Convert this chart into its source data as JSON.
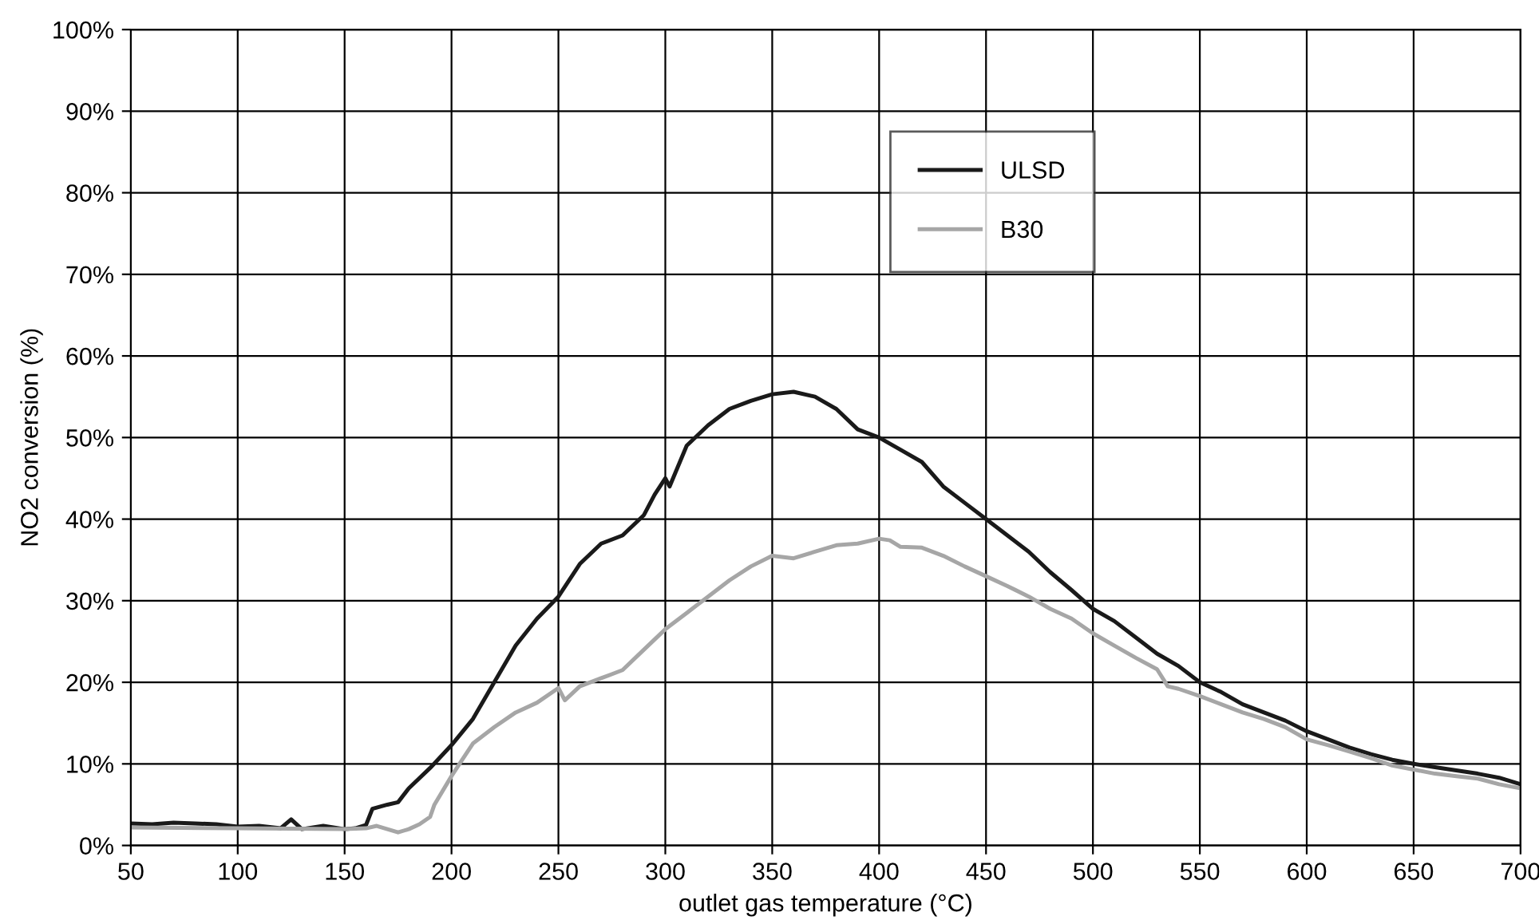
{
  "chart_data": {
    "type": "line",
    "xlabel": "outlet gas temperature (°C)",
    "ylabel": "NO2 conversion (%)",
    "xlim": [
      50,
      700
    ],
    "xticks": [
      50,
      100,
      150,
      200,
      250,
      300,
      350,
      400,
      450,
      500,
      550,
      600,
      650,
      700
    ],
    "ylim": [
      0,
      100
    ],
    "yticks": [
      {
        "value": 0,
        "label": "0%"
      },
      {
        "value": 10,
        "label": "10%"
      },
      {
        "value": 20,
        "label": "20%"
      },
      {
        "value": 30,
        "label": "30%"
      },
      {
        "value": 40,
        "label": "40%"
      },
      {
        "value": 50,
        "label": "50%"
      },
      {
        "value": 60,
        "label": "60%"
      },
      {
        "value": 70,
        "label": "70%"
      },
      {
        "value": 80,
        "label": "80%"
      },
      {
        "value": 90,
        "label": "90%"
      },
      {
        "value": 100,
        "label": "100%"
      }
    ],
    "grid": true,
    "legend": "top",
    "marker": "none",
    "series": [
      {
        "name": "ULSD",
        "color": "#1a1a1a",
        "line_style": "solid",
        "x": [
          50,
          60,
          70,
          80,
          90,
          100,
          110,
          120,
          125,
          130,
          140,
          150,
          155,
          160,
          163,
          170,
          175,
          180,
          190,
          200,
          210,
          220,
          230,
          240,
          250,
          260,
          270,
          280,
          290,
          295,
          300,
          302,
          310,
          320,
          330,
          340,
          350,
          360,
          370,
          380,
          390,
          400,
          410,
          420,
          430,
          440,
          450,
          460,
          470,
          480,
          490,
          500,
          510,
          520,
          530,
          540,
          550,
          560,
          570,
          580,
          590,
          600,
          610,
          620,
          630,
          640,
          650,
          660,
          670,
          680,
          690,
          700
        ],
        "values": [
          2.7,
          2.6,
          2.8,
          2.7,
          2.6,
          2.3,
          2.4,
          2.1,
          3.2,
          2.0,
          2.4,
          2.0,
          2.1,
          2.5,
          4.5,
          5.0,
          5.3,
          7.0,
          9.5,
          12.3,
          15.5,
          20,
          24.5,
          27.8,
          30.5,
          34.5,
          37,
          38,
          40.5,
          43,
          45,
          44,
          49,
          51.5,
          53.5,
          54.5,
          55.3,
          55.6,
          55,
          53.5,
          51,
          50,
          48.5,
          47,
          44,
          42,
          40,
          38,
          36,
          33.5,
          31.3,
          29,
          27.5,
          25.5,
          23.5,
          22,
          20,
          18.8,
          17.3,
          16.3,
          15.3,
          14,
          13,
          12,
          11.2,
          10.5,
          10,
          9.6,
          9.2,
          8.8,
          8.3,
          7.5
        ]
      },
      {
        "name": "B30",
        "color": "#a6a6a6",
        "line_style": "solid",
        "x": [
          50,
          100,
          150,
          160,
          165,
          170,
          175,
          180,
          185,
          190,
          192,
          200,
          205,
          210,
          220,
          230,
          240,
          250,
          253,
          260,
          270,
          280,
          290,
          300,
          310,
          320,
          330,
          340,
          350,
          360,
          370,
          380,
          390,
          400,
          405,
          410,
          420,
          430,
          440,
          450,
          460,
          470,
          480,
          490,
          500,
          510,
          520,
          530,
          535,
          540,
          550,
          560,
          570,
          580,
          590,
          600,
          610,
          620,
          630,
          640,
          650,
          660,
          670,
          680,
          690,
          700
        ],
        "values": [
          2.2,
          2.1,
          2.0,
          2.1,
          2.4,
          2.0,
          1.6,
          2.0,
          2.6,
          3.5,
          5,
          8.5,
          10.5,
          12.5,
          14.5,
          16.3,
          17.5,
          19.3,
          17.8,
          19.5,
          20.5,
          21.5,
          24,
          26.5,
          28.5,
          30.5,
          32.5,
          34.2,
          35.5,
          35.2,
          36,
          36.8,
          37,
          37.6,
          37.4,
          36.6,
          36.5,
          35.5,
          34.2,
          33,
          31.8,
          30.5,
          29,
          27.8,
          26,
          24.5,
          23,
          21.6,
          19.5,
          19.2,
          18.3,
          17.3,
          16.3,
          15.5,
          14.5,
          13,
          12.3,
          11.5,
          10.7,
          9.8,
          9.3,
          8.8,
          8.5,
          8.2,
          7.5,
          7.0
        ]
      }
    ]
  }
}
